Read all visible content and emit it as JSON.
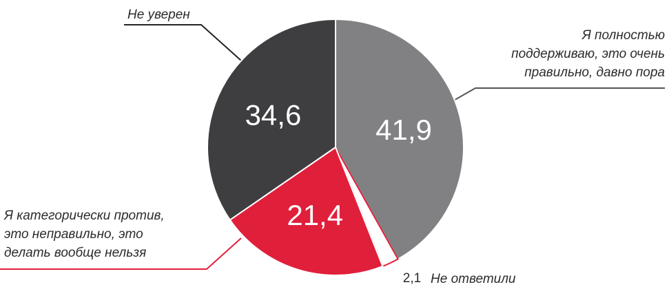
{
  "chart_data": {
    "type": "pie",
    "categories": [
      "Я полностью\nподдерживаю, это очень\nправильно, давно пора",
      "Не ответили",
      "Я категорически против,\nэто неправильно, это\nделать вообще нельзя",
      "Не уверен"
    ],
    "values": [
      41.9,
      2.1,
      21.4,
      34.6
    ],
    "value_labels": [
      "41,9",
      "2,1",
      "21,4",
      "34,6"
    ],
    "colors": [
      "#818184",
      "#ffffff",
      "#e01f3b",
      "#3e3e40"
    ]
  }
}
